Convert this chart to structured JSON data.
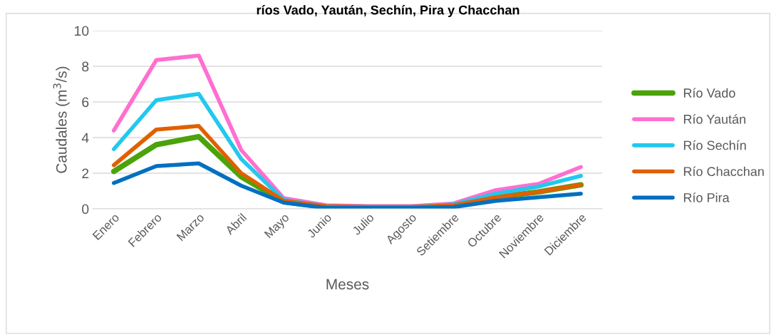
{
  "chart_data": {
    "type": "line",
    "title": "ríos Vado, Yaután, Sechín, Pira y Chacchan",
    "xlabel": "Meses",
    "ylabel": "Caudales (m$^{3}$/s)",
    "categories": [
      "Enero",
      "Febrero",
      "Marzo",
      "Abril",
      "Mayo",
      "Junio",
      "Julio",
      "Agosto",
      "Setiembre",
      "Octubre",
      "Noviembre",
      "Diciembre"
    ],
    "ylim": [
      0,
      10
    ],
    "yticks": [
      0,
      2,
      4,
      6,
      8,
      10
    ],
    "grid": "y",
    "legend": "right",
    "marker": "none",
    "line_style": "solid",
    "series": [
      {
        "name": "Río Vado",
        "color": "#4aa30a",
        "values": [
          2.1,
          3.6,
          4.05,
          1.8,
          0.4,
          0.1,
          0.1,
          0.1,
          0.2,
          0.65,
          0.95,
          1.35
        ]
      },
      {
        "name": "Río Yaután",
        "color": "#ff6fd0",
        "values": [
          4.4,
          8.35,
          8.6,
          3.3,
          0.6,
          0.2,
          0.15,
          0.15,
          0.3,
          1.05,
          1.4,
          2.35
        ]
      },
      {
        "name": "Río Sechín",
        "color": "#22c8ee",
        "values": [
          3.35,
          6.1,
          6.45,
          2.8,
          0.5,
          0.15,
          0.1,
          0.1,
          0.25,
          0.85,
          1.25,
          1.85
        ]
      },
      {
        "name": "Río Chacchan",
        "color": "#e06000",
        "values": [
          2.45,
          4.45,
          4.65,
          2.0,
          0.45,
          0.15,
          0.1,
          0.1,
          0.2,
          0.65,
          0.95,
          1.35
        ]
      },
      {
        "name": "Río Pira",
        "color": "#0070c0",
        "values": [
          1.45,
          2.4,
          2.55,
          1.3,
          0.35,
          0.05,
          0.05,
          0.05,
          0.1,
          0.45,
          0.65,
          0.85
        ]
      }
    ]
  }
}
